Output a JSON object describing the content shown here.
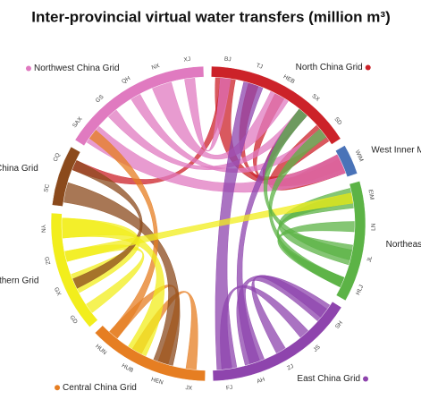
{
  "title": "Inter-provincial virtual water transfers (million m³)",
  "regions": [
    {
      "name": "North China Grid",
      "color": "#cc2229",
      "provinces": [
        "BJ",
        "TJ",
        "HEB",
        "SX",
        "SD"
      ]
    },
    {
      "name": "West Inner Mongolia Grid",
      "color": "#4a73b8",
      "provinces": [
        "WIM"
      ]
    },
    {
      "name": "Northeast China Grid",
      "color": "#5cb346",
      "provinces": [
        "EIM",
        "LN",
        "JL",
        "HLJ"
      ]
    },
    {
      "name": "East China Grid",
      "color": "#8e44ad",
      "provinces": [
        "SH",
        "JS",
        "ZJ",
        "AH",
        "FJ"
      ]
    },
    {
      "name": "Central China Grid",
      "color": "#e67e22",
      "provinces": [
        "JX",
        "HEN",
        "HUB",
        "HUN"
      ]
    },
    {
      "name": "China Southern Grid",
      "color": "#f2ee1c",
      "provinces": [
        "GD",
        "GX",
        "GZ",
        "YN"
      ]
    },
    {
      "name": "Southwest China Grid",
      "color": "#8b4a1c",
      "provinces": [
        "SC",
        "CQ"
      ]
    },
    {
      "name": "Northwest China Grid",
      "color": "#e07ac0",
      "provinces": [
        "SAX",
        "GS",
        "QH",
        "NX",
        "XJ"
      ]
    }
  ]
}
